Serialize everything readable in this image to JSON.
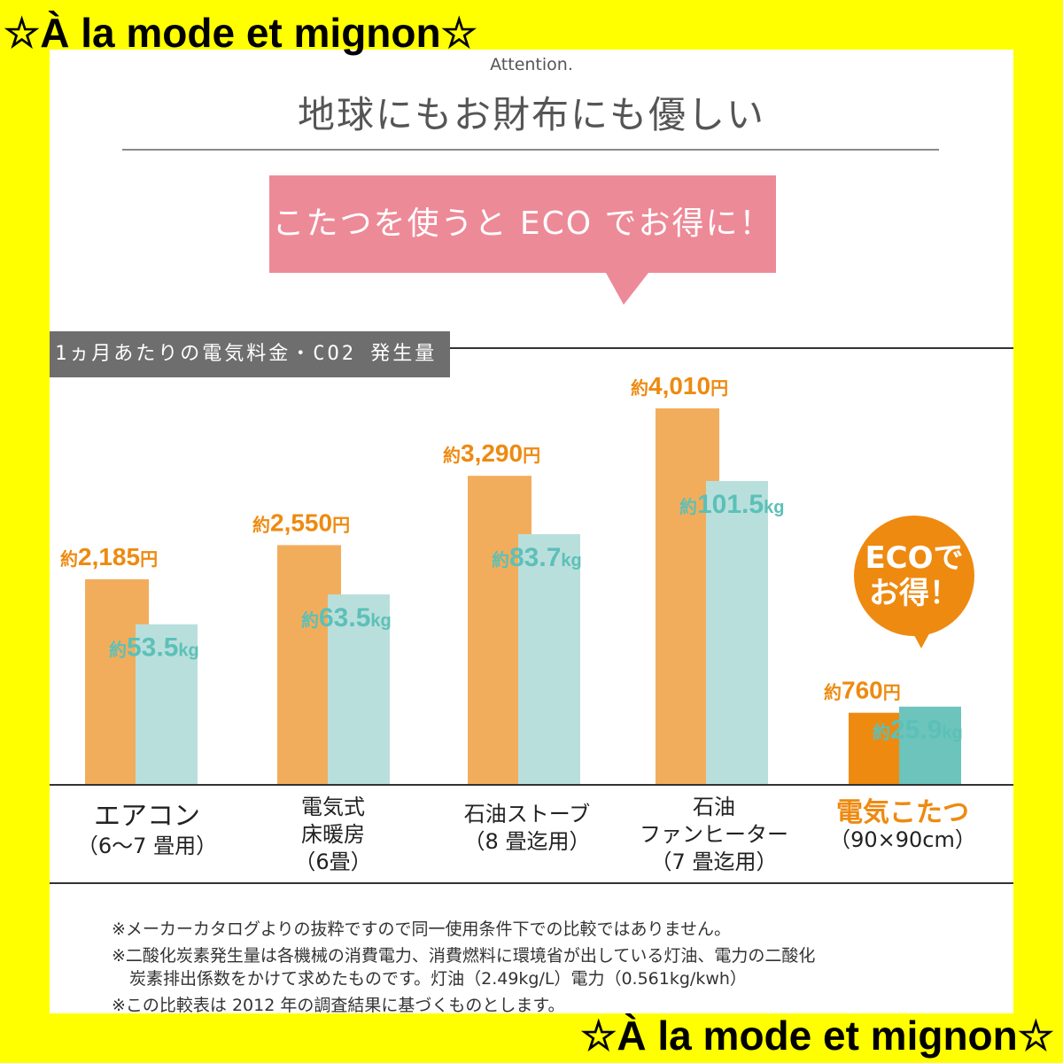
{
  "watermark": "☆À la mode et mignon☆",
  "header": {
    "attention": "Attention.",
    "title": "地球にもお財布にも優しい"
  },
  "bubble_text": "こたつを使うと ECO でお得に！",
  "chart_label": "1ヵ月あたりの電気料金・CO2 発生量",
  "eco_badge": {
    "line1": "ECOで",
    "line2": "お得！"
  },
  "colors": {
    "cost_bar": "#f2ad5c",
    "co2_bar": "#b9dfdc",
    "highlight_cost_bar": "#ee8a10",
    "highlight_co2_bar": "#6cc4bd",
    "cost_label": "#ee8a10",
    "co2_label": "#5cc0b8",
    "bubble": "#ed8a98",
    "frame": "#ffff00"
  },
  "chart_data": {
    "type": "bar",
    "title": "1ヵ月あたりの電気料金・CO2 発生量",
    "categories": [
      {
        "main": "エアコン",
        "sub": "（6〜7 畳用）"
      },
      {
        "main": "電気式",
        "sub": "床暖房",
        "sub2": "（6畳）"
      },
      {
        "main": "石油ストーブ",
        "sub": "（8 畳迄用）"
      },
      {
        "main": "石油",
        "sub": "ファンヒーター",
        "sub2": "（7 畳迄用）"
      },
      {
        "main": "電気こたつ",
        "sub": "（90×90cm）",
        "highlight": true
      }
    ],
    "series": [
      {
        "name": "電気料金",
        "unit": "円",
        "prefix": "約",
        "values": [
          2185,
          2550,
          3290,
          4010,
          760
        ],
        "labels": [
          "2,185",
          "2,550",
          "3,290",
          "4,010",
          "760"
        ]
      },
      {
        "name": "CO2 発生量",
        "unit": "kg",
        "prefix": "約",
        "values": [
          53.5,
          63.5,
          83.7,
          101.5,
          25.9
        ],
        "labels": [
          "53.5",
          "63.5",
          "83.7",
          "101.5",
          "25.9"
        ]
      }
    ]
  },
  "notes": [
    "※メーカーカタログよりの抜粋ですので同一使用条件下での比較ではありません。",
    "※二酸化炭素発生量は各機械の消費電力、消費燃料に環境省が出している灯油、電力の二酸化",
    "炭素排出係数をかけて求めたものです。灯油（2.49kg/L）電力（0.561kg/kwh）",
    "※この比較表は 2012 年の調査結果に基づくものとします。"
  ]
}
